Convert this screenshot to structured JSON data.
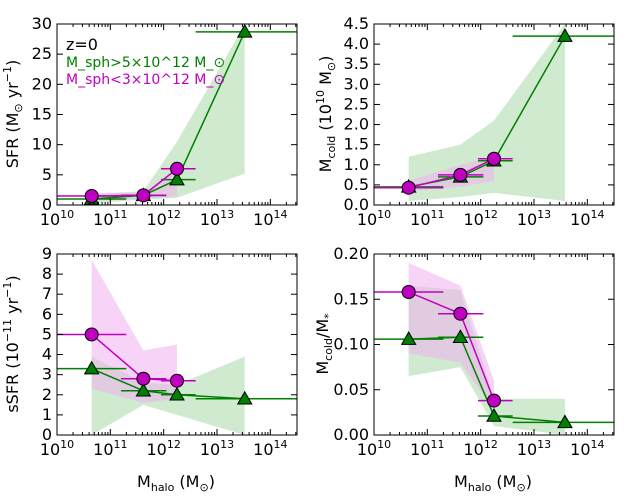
{
  "figure": {
    "annotation": "z=0"
  },
  "colors": {
    "green": "#008000",
    "magenta": "#c000c0",
    "green_fill": "#a8d8a8",
    "magenta_fill": "#f0b0f0"
  },
  "legend": {
    "green_label": "M_sph>5×10^12 M_⊙",
    "magenta_label": "M_sph<3×10^12 M_⊙",
    "position": "top-left"
  },
  "chart_data": [
    {
      "id": "sfr",
      "type": "scatter",
      "ylabel": "SFR (M_⊙ yr⁻¹)",
      "xlabel": "",
      "xscale": "log",
      "xlim": [
        10,
        14.5
      ],
      "ylim": [
        0,
        30
      ],
      "yticks": [
        "0",
        "5",
        "10",
        "15",
        "20",
        "25",
        "30"
      ],
      "xticks": [
        "10^10",
        "10^11",
        "10^12",
        "10^13",
        "10^14"
      ],
      "series": [
        {
          "name": "green",
          "marker": "triangle",
          "x": [
            10.65,
            11.62,
            12.25,
            13.52
          ],
          "y": [
            1.0,
            1.6,
            4.2,
            28.7
          ],
          "xerr_lo": [
            10,
            11.2,
            11.95,
            12.6
          ],
          "xerr_hi": [
            11.3,
            12.05,
            12.6,
            14.5
          ],
          "band_lo": [
            0.3,
            0.9,
            1.2,
            5.2
          ],
          "band_hi": [
            1.8,
            2.3,
            10.5,
            29.9
          ]
        },
        {
          "name": "magenta",
          "marker": "circle",
          "x": [
            10.65,
            11.62,
            12.25
          ],
          "y": [
            1.5,
            1.6,
            6.0
          ],
          "xerr_lo": [
            10,
            11.2,
            11.95
          ],
          "xerr_hi": [
            11.3,
            12.05,
            12.6
          ],
          "band_lo": [
            0.7,
            1.0,
            1.5
          ],
          "band_hi": [
            2.0,
            2.0,
            6.3
          ]
        }
      ]
    },
    {
      "id": "mcold",
      "type": "scatter",
      "ylabel": "M_cold (10^10 M_⊙)",
      "xlabel": "",
      "xscale": "log",
      "xlim": [
        10,
        14.5
      ],
      "ylim": [
        0,
        4.5
      ],
      "yticks": [
        "0.0",
        "0.5",
        "1.0",
        "1.5",
        "2.0",
        "2.5",
        "3.0",
        "3.5",
        "4.0",
        "4.5"
      ],
      "xticks": [
        "10^10",
        "10^11",
        "10^12",
        "10^13",
        "10^14"
      ],
      "series": [
        {
          "name": "green",
          "marker": "triangle",
          "x": [
            10.65,
            11.62,
            12.25,
            13.58
          ],
          "y": [
            0.45,
            0.7,
            1.1,
            4.2
          ],
          "xerr_lo": [
            10,
            11.2,
            11.95,
            12.6
          ],
          "xerr_hi": [
            11.3,
            12.05,
            12.6,
            14.5
          ],
          "band_lo": [
            0.1,
            0.2,
            0.3,
            0.1
          ],
          "band_hi": [
            1.2,
            1.5,
            2.1,
            4.5
          ]
        },
        {
          "name": "magenta",
          "marker": "circle",
          "x": [
            10.65,
            11.62,
            12.25
          ],
          "y": [
            0.43,
            0.75,
            1.15
          ],
          "xerr_lo": [
            10,
            11.2,
            11.95
          ],
          "xerr_hi": [
            11.3,
            12.05,
            12.6
          ],
          "band_lo": [
            0.35,
            0.45,
            0.6
          ],
          "band_hi": [
            0.6,
            1.0,
            1.2
          ]
        }
      ]
    },
    {
      "id": "ssfr",
      "type": "scatter",
      "ylabel": "sSFR (10⁻¹¹ yr⁻¹)",
      "xlabel": "M_halo (M_⊙)",
      "xscale": "log",
      "xlim": [
        10,
        14.5
      ],
      "ylim": [
        0,
        9
      ],
      "yticks": [
        "0",
        "1",
        "2",
        "3",
        "4",
        "5",
        "6",
        "7",
        "8",
        "9"
      ],
      "xticks": [
        "10^10",
        "10^11",
        "10^12",
        "10^13",
        "10^14"
      ],
      "series": [
        {
          "name": "green",
          "marker": "triangle",
          "x": [
            10.65,
            11.62,
            12.25,
            13.52
          ],
          "y": [
            3.3,
            2.2,
            2.0,
            1.8
          ],
          "xerr_lo": [
            10,
            11.2,
            11.95,
            12.6
          ],
          "xerr_hi": [
            11.3,
            12.05,
            12.6,
            14.5
          ],
          "band_lo": [
            0.0,
            1.5,
            1.0,
            0.0
          ],
          "band_hi": [
            3.9,
            2.6,
            2.5,
            3.9
          ]
        },
        {
          "name": "magenta",
          "marker": "circle",
          "x": [
            10.65,
            11.62,
            12.25
          ],
          "y": [
            5.0,
            2.8,
            2.7
          ],
          "xerr_lo": [
            10,
            11.2,
            11.95
          ],
          "xerr_hi": [
            11.3,
            12.05,
            12.6
          ],
          "band_lo": [
            2.3,
            1.6,
            1.8
          ],
          "band_hi": [
            8.7,
            4.2,
            4.5
          ]
        }
      ]
    },
    {
      "id": "ratio",
      "type": "scatter",
      "ylabel": "M_cold/M_*",
      "xlabel": "M_halo (M_⊙)",
      "xscale": "log",
      "xlim": [
        10,
        14.5
      ],
      "ylim": [
        0,
        0.2
      ],
      "yticks": [
        "0.00",
        "0.05",
        "0.10",
        "0.15",
        "0.20"
      ],
      "xticks": [
        "10^10",
        "10^11",
        "10^12",
        "10^13",
        "10^14"
      ],
      "series": [
        {
          "name": "green",
          "marker": "triangle",
          "x": [
            10.65,
            11.62,
            12.25,
            13.58
          ],
          "y": [
            0.106,
            0.108,
            0.021,
            0.014
          ],
          "xerr_lo": [
            10,
            11.2,
            11.95,
            12.6
          ],
          "xerr_hi": [
            11.3,
            12.05,
            12.6,
            14.5
          ],
          "band_lo": [
            0.065,
            0.075,
            0.01,
            0.0
          ],
          "band_hi": [
            0.165,
            0.16,
            0.04,
            0.04
          ]
        },
        {
          "name": "magenta",
          "marker": "circle",
          "x": [
            10.65,
            11.62,
            12.25
          ],
          "y": [
            0.158,
            0.134,
            0.038
          ],
          "xerr_lo": [
            10,
            11.2,
            11.95
          ],
          "xerr_hi": [
            11.3,
            12.05,
            12.6
          ],
          "band_lo": [
            0.09,
            0.08,
            0.028
          ],
          "band_hi": [
            0.19,
            0.165,
            0.06
          ]
        }
      ]
    }
  ]
}
